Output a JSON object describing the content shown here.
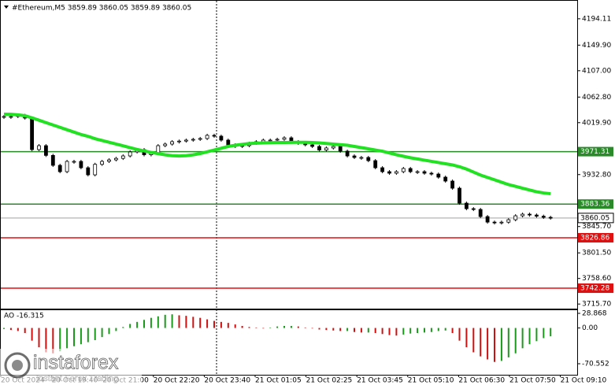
{
  "chart_data": [
    {
      "type": "candlestick",
      "title": "#Ethereum,M5  3859.89 3860.05 3859.89 3860.05",
      "close": [
        4030.2,
        4030.2,
        4032.0,
        4027.6,
        3974.7,
        3981.3,
        3965.0,
        3948.3,
        3937.7,
        3954.9,
        3954.9,
        3944.3,
        3932.4,
        3950.0,
        3954.9,
        3957.5,
        3960.0,
        3964.1,
        3970.8,
        3974.7,
        3966.0,
        3968.1,
        3981.3,
        3984.0,
        3988.0,
        3989.0,
        3990.6,
        3991.9,
        3993.3,
        3998.6,
        3997.2,
        3990.6,
        3982.7,
        3980.0,
        3981.3,
        3985.3,
        3988.0,
        3990.6,
        3990.6,
        3992.0,
        3994.5,
        3988.0,
        3985.3,
        3982.7,
        3980.0,
        3974.0,
        3977.4,
        3980.0,
        3972.1,
        3964.1,
        3961.5,
        3961.5,
        3956.2,
        3944.3,
        3937.7,
        3935.1,
        3937.7,
        3943.0,
        3937.7,
        3937.7,
        3935.1,
        3933.7,
        3928.5,
        3921.9,
        3910.0,
        3884.9,
        3875.6,
        3874.3,
        3862.4,
        3853.1,
        3851.8,
        3853.0,
        3857.1,
        3863.7,
        3866.4,
        3865.0,
        3863.0,
        3861.1,
        3860.05
      ],
      "ma": {
        "color": "#22e022",
        "values": [
          4034.2,
          4034,
          4033,
          4031.5,
          4028,
          4024,
          4020,
          4016,
          4012,
          4008,
          4004,
          4000,
          3997,
          3993,
          3990,
          3987,
          3984,
          3981,
          3978,
          3975,
          3972.5,
          3970,
          3968,
          3966,
          3964.5,
          3964,
          3964.5,
          3966,
          3968,
          3971,
          3974,
          3977,
          3980,
          3982,
          3983.5,
          3985,
          3985.5,
          3986,
          3986.3,
          3986.6,
          3986.6,
          3986.8,
          3987,
          3987,
          3986.6,
          3986,
          3985,
          3984,
          3983,
          3982,
          3980,
          3978,
          3976,
          3974,
          3972,
          3969,
          3966,
          3963.5,
          3961,
          3959,
          3957,
          3955,
          3953,
          3951,
          3949,
          3946,
          3942,
          3937,
          3932,
          3928,
          3924,
          3920,
          3916,
          3913,
          3910,
          3907,
          3904,
          3902,
          3900.7
        ]
      },
      "levels": [
        {
          "value": 3971.31,
          "color": "#2a8a2a"
        },
        {
          "value": 3883.36,
          "color": "#2a8a2a"
        },
        {
          "value": 3860.05,
          "color": "#c0c0c0"
        },
        {
          "value": 3826.86,
          "color": "#e01010"
        },
        {
          "value": 3742.28,
          "color": "#e01010"
        }
      ],
      "ylim": [
        3708,
        4219
      ],
      "yticks": [
        {
          "value": 4194.11,
          "label": "4194.11"
        },
        {
          "value": 4149.9,
          "label": "4149.90"
        },
        {
          "value": 4107,
          "label": "4107.00"
        },
        {
          "value": 4062.8,
          "label": "4062.80"
        },
        {
          "value": 4019.9,
          "label": "4019.90"
        },
        {
          "value": 3932.8,
          "label": "3932.80"
        },
        {
          "value": 3845.7,
          "label": "3845.70"
        },
        {
          "value": 3801.5,
          "label": "3801.50"
        },
        {
          "value": 3758.6,
          "label": "3758.60"
        },
        {
          "value": 3715.7,
          "label": "3715.70"
        }
      ],
      "xtick_labels": [
        "20 Oct 2024",
        "20 Oct 19:40",
        "20 Oct 21:00",
        "20 Oct 22:20",
        "20 Oct 23:40",
        "21 Oct 01:05",
        "21 Oct 02:25",
        "21 Oct 03:45",
        "21 Oct 05:10",
        "21 Oct 06:30",
        "21 Oct 07:50",
        "21 Oct 09:10"
      ]
    },
    {
      "type": "bar",
      "title": "AO -16.315",
      "up_color": "#1a9a1a",
      "down_color": "#d01010",
      "values": [
        -2,
        -4,
        -6,
        -10,
        -25,
        -38,
        -48,
        -50,
        -46,
        -40,
        -36,
        -32,
        -28,
        -24,
        -18,
        -12,
        -6,
        2,
        8,
        12,
        16,
        20,
        23,
        26,
        27,
        25,
        24,
        22,
        20,
        17,
        14,
        12,
        10,
        7,
        4,
        2,
        1,
        -1,
        1,
        3,
        4,
        4,
        3,
        1,
        -1,
        -3,
        -4,
        -5,
        -6,
        -6,
        -8,
        -9,
        -9,
        -10,
        -12,
        -14,
        -15,
        -13,
        -11,
        -10,
        -9,
        -8,
        -6,
        -5,
        -10,
        -25,
        -38,
        -48,
        -56,
        -62,
        -67,
        -65,
        -58,
        -50,
        -40,
        -32,
        -26,
        -20,
        -16.315
      ],
      "ylim": [
        -92.3,
        36.6
      ],
      "yticks": [
        28.868,
        {
          "value": 0,
          "label": "0.00"
        },
        -70.552
      ]
    }
  ],
  "watermark": {
    "brand": "instaforex",
    "slogan": "Instant Forex Trading"
  }
}
